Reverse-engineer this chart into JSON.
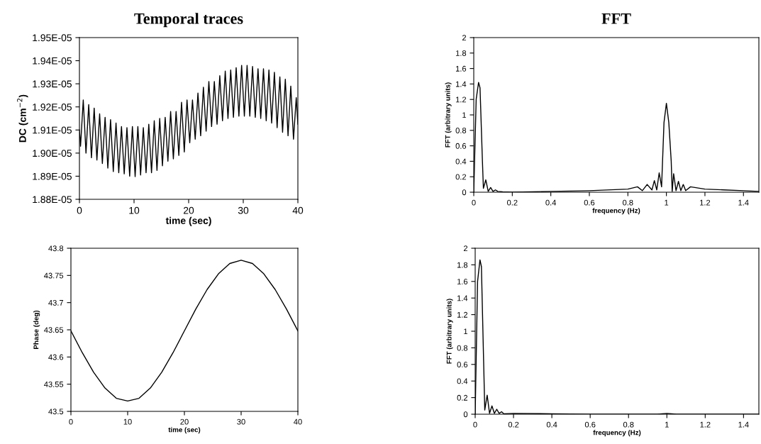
{
  "chart_data": [
    {
      "type": "line",
      "title": "Temporal traces",
      "xlabel": "time (sec)",
      "ylabel": "DC (cm$^{−2}$)",
      "x": [
        0,
        0.2,
        0.7,
        1.2,
        1.7,
        2.2,
        2.7,
        3.2,
        3.7,
        4.2,
        4.7,
        5.2,
        5.7,
        6.2,
        6.7,
        7.2,
        7.7,
        8.2,
        8.7,
        9.2,
        9.7,
        10.2,
        10.7,
        11.2,
        11.7,
        12.2,
        12.7,
        13.2,
        13.7,
        14.2,
        14.7,
        15.2,
        15.7,
        16.2,
        16.7,
        17.2,
        17.7,
        18.2,
        18.7,
        19.2,
        19.7,
        20.2,
        20.7,
        21.2,
        21.7,
        22.2,
        22.7,
        23.2,
        23.7,
        24.2,
        24.7,
        25.2,
        25.7,
        26.2,
        26.7,
        27.2,
        27.7,
        28.2,
        28.7,
        29.2,
        29.7,
        30.2,
        30.7,
        31.2,
        31.7,
        32.2,
        32.7,
        33.2,
        33.7,
        34.2,
        34.7,
        35.2,
        35.7,
        36.2,
        36.7,
        37.2,
        37.7,
        38.2,
        38.7,
        39.2,
        39.7,
        40
      ],
      "series": [
        {
          "color": "#000000",
          "values": [
            1.91e-05,
            1.903e-05,
            1.923e-05,
            1.9e-05,
            1.921e-05,
            1.898e-05,
            1.9195e-05,
            1.897e-05,
            1.917e-05,
            1.8955e-05,
            1.9155e-05,
            1.8935e-05,
            1.9145e-05,
            1.892e-05,
            1.913e-05,
            1.8915e-05,
            1.9115e-05,
            1.891e-05,
            1.911e-05,
            1.89e-05,
            1.9115e-05,
            1.8898e-05,
            1.9115e-05,
            1.8905e-05,
            1.911e-05,
            1.8915e-05,
            1.9125e-05,
            1.8915e-05,
            1.914e-05,
            1.8925e-05,
            1.915e-05,
            1.8945e-05,
            1.9155e-05,
            1.8965e-05,
            1.918e-05,
            1.8975e-05,
            1.918e-05,
            1.899e-05,
            1.922e-05,
            1.9005e-05,
            1.923e-05,
            1.9045e-05,
            1.923e-05,
            1.906e-05,
            1.926e-05,
            1.9075e-05,
            1.9285e-05,
            1.9095e-05,
            1.931e-05,
            1.9115e-05,
            1.931e-05,
            1.9125e-05,
            1.9335e-05,
            1.914e-05,
            1.9355e-05,
            1.915e-05,
            1.936e-05,
            1.9155e-05,
            1.937e-05,
            1.916e-05,
            1.938e-05,
            1.916e-05,
            1.938e-05,
            1.916e-05,
            1.9375e-05,
            1.9155e-05,
            1.9365e-05,
            1.915e-05,
            1.9365e-05,
            1.914e-05,
            1.936e-05,
            1.913e-05,
            1.935e-05,
            1.911e-05,
            1.933e-05,
            1.909e-05,
            1.932e-05,
            1.9075e-05,
            1.929e-05,
            1.906e-05,
            1.924e-05,
            1.9125e-05
          ]
        }
      ],
      "xlim": [
        0,
        40
      ],
      "xticks": [
        0,
        10,
        20,
        30,
        40
      ],
      "ylim": [
        1.88e-05,
        1.95e-05
      ],
      "yticks": [
        {
          "value": 1.88e-05,
          "label": "1.88E-05"
        },
        {
          "value": 1.89e-05,
          "label": "1.89E-05"
        },
        {
          "value": 1.9e-05,
          "label": "1.90E-05"
        },
        {
          "value": 1.91e-05,
          "label": "1.91E-05"
        },
        {
          "value": 1.92e-05,
          "label": "1.92E-05"
        },
        {
          "value": 1.93e-05,
          "label": "1.93E-05"
        },
        {
          "value": 1.94e-05,
          "label": "1.94E-05"
        },
        {
          "value": 1.95e-05,
          "label": "1.95E-05"
        }
      ],
      "grid": false,
      "legend": false
    },
    {
      "type": "line",
      "title": "FFT",
      "xlabel": "frequency (Hz)",
      "ylabel": "FFT (arbitrary units)",
      "x": [
        0,
        0.0125,
        0.025,
        0.0325,
        0.045,
        0.05,
        0.0625,
        0.075,
        0.0875,
        0.1,
        0.1125,
        0.125,
        0.15,
        0.2,
        0.4,
        0.6,
        0.8,
        0.85,
        0.875,
        0.9,
        0.925,
        0.9375,
        0.95,
        0.9625,
        0.975,
        0.9875,
        1.0,
        1.0125,
        1.025,
        1.03,
        1.0375,
        1.05,
        1.0625,
        1.075,
        1.0875,
        1.1,
        1.125,
        1.2,
        1.3,
        1.4,
        1.48
      ],
      "series": [
        {
          "color": "#000000",
          "values": [
            0,
            1.2,
            1.42,
            1.35,
            0.4,
            0.05,
            0.16,
            0.01,
            0.06,
            0.01,
            0.03,
            0.01,
            0.005,
            0,
            0.01,
            0.02,
            0.04,
            0.07,
            0.02,
            0.1,
            0.03,
            0.15,
            0.03,
            0.25,
            0.07,
            0.9,
            1.15,
            0.9,
            0.4,
            0.01,
            0.24,
            0.02,
            0.14,
            0.02,
            0.1,
            0.02,
            0.07,
            0.04,
            0.03,
            0.02,
            0.01
          ]
        }
      ],
      "xlim": [
        0,
        1.48
      ],
      "xticks": [
        0,
        0.2,
        0.4,
        0.6,
        0.8,
        1,
        1.2,
        1.4
      ],
      "ylim": [
        0,
        2
      ],
      "yticks": [
        0,
        0.2,
        0.4,
        0.6,
        0.8,
        1,
        1.2,
        1.4,
        1.6,
        1.8,
        2
      ],
      "grid": false,
      "legend": false
    },
    {
      "type": "line",
      "xlabel": "time (sec)",
      "ylabel": "Phase (deg)",
      "x": [
        0,
        2,
        4,
        6,
        8,
        10,
        12,
        14,
        16,
        18,
        20,
        22,
        24,
        26,
        28,
        30,
        32,
        34,
        36,
        38,
        40
      ],
      "series": [
        {
          "color": "#000000",
          "values": [
            43.648,
            43.608,
            43.572,
            43.543,
            43.524,
            43.519,
            43.524,
            43.543,
            43.572,
            43.608,
            43.648,
            43.688,
            43.724,
            43.753,
            43.772,
            43.778,
            43.772,
            43.753,
            43.724,
            43.688,
            43.648
          ]
        }
      ],
      "xlim": [
        0,
        40
      ],
      "xticks": [
        0,
        10,
        20,
        30,
        40
      ],
      "ylim": [
        43.5,
        43.8
      ],
      "yticks": [
        43.5,
        43.55,
        43.6,
        43.65,
        43.7,
        43.75,
        43.8
      ],
      "grid": false,
      "legend": false
    },
    {
      "type": "line",
      "xlabel": "frequency (Hz)",
      "ylabel": "FFT (arbitrary units)",
      "x": [
        0,
        0.0125,
        0.025,
        0.0325,
        0.05,
        0.0625,
        0.075,
        0.0875,
        0.1,
        0.1125,
        0.125,
        0.1375,
        0.15,
        0.2,
        0.4,
        0.6,
        0.95,
        1.0,
        1.05,
        1.48
      ],
      "series": [
        {
          "color": "#000000",
          "values": [
            0,
            1.6,
            1.86,
            1.78,
            0.05,
            0.23,
            0.01,
            0.1,
            0.01,
            0.06,
            0.01,
            0.03,
            0.005,
            0.01,
            0.005,
            0,
            0,
            0.01,
            0,
            0
          ]
        }
      ],
      "xlim": [
        0,
        1.48
      ],
      "xticks": [
        0,
        0.2,
        0.4,
        0.6,
        0.8,
        1,
        1.2,
        1.4
      ],
      "ylim": [
        0,
        2
      ],
      "yticks": [
        0,
        0.2,
        0.4,
        0.6,
        0.8,
        1,
        1.2,
        1.4,
        1.6,
        1.8,
        2
      ],
      "grid": false,
      "legend": false
    }
  ]
}
